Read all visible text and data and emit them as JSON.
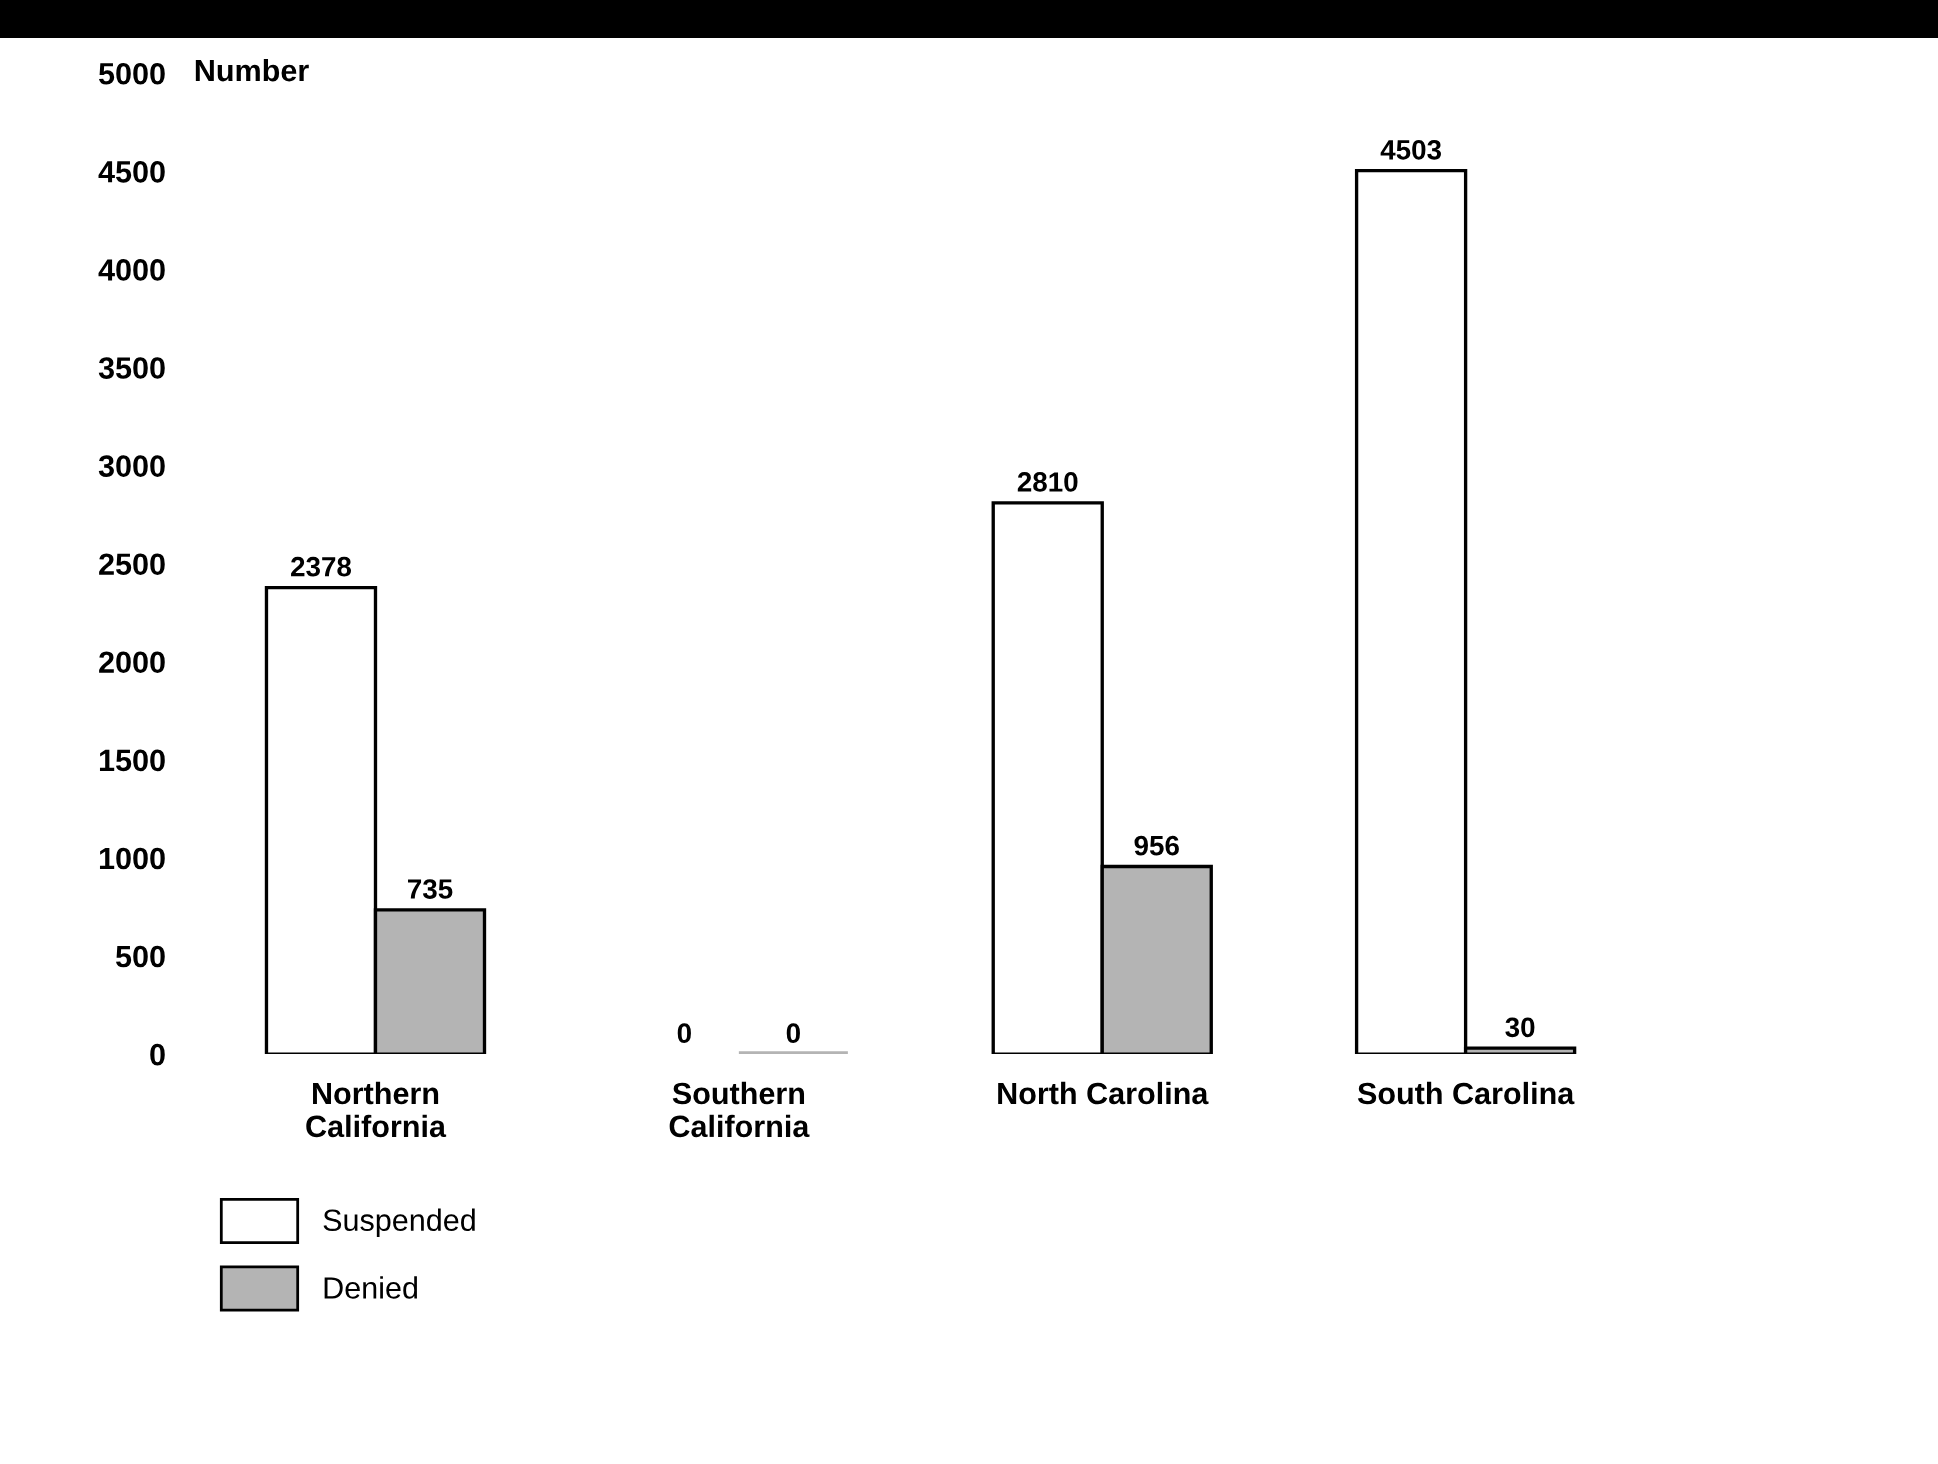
{
  "chart_data": {
    "type": "bar",
    "ylabel": "Number",
    "categories": [
      "Northern\nCalifornia",
      "Southern\nCalifornia",
      "North Carolina",
      "South Carolina"
    ],
    "series": [
      {
        "name": "Suspended",
        "color": "#ffffff",
        "values": [
          2378,
          0,
          2810,
          4503
        ]
      },
      {
        "name": "Denied",
        "color": "#b4b4b4",
        "values": [
          735,
          0,
          956,
          30
        ]
      }
    ],
    "ylim": [
      0,
      5000
    ],
    "yticks": [
      0,
      500,
      1000,
      1500,
      2000,
      2500,
      3000,
      3500,
      4000,
      4500,
      5000
    ],
    "data_labels": true,
    "grid": false,
    "legend": "bottom left"
  }
}
